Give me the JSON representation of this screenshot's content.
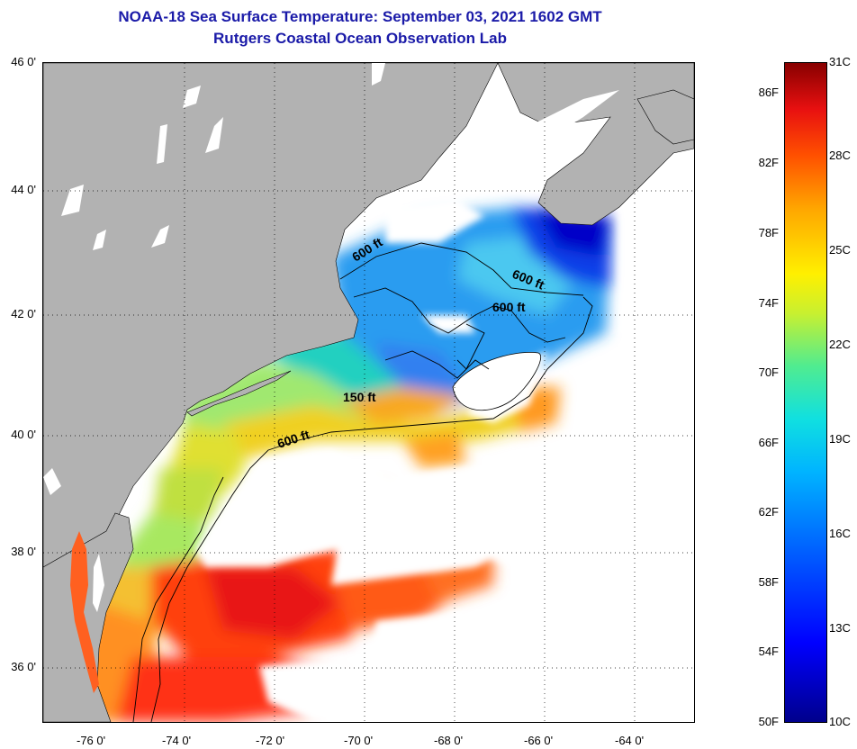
{
  "title_line1": "NOAA-18 Sea Surface Temperature:  September 03, 2021 1602 GMT",
  "title_line2": "Rutgers Coastal Ocean Observation Lab",
  "lat_labels": [
    "46 0'",
    "44 0'",
    "42 0'",
    "40 0'",
    "38 0'",
    "36 0'"
  ],
  "lon_labels": [
    "-76 0'",
    "-74 0'",
    "-72 0'",
    "-70 0'",
    "-68 0'",
    "-66 0'",
    "-64 0'"
  ],
  "isobaths": [
    "600 ft",
    "600 ft",
    "600 ft",
    "150 ft",
    "600 ft"
  ],
  "colorbar": {
    "fahrenheit": [
      "86F",
      "82F",
      "78F",
      "74F",
      "70F",
      "66F",
      "62F",
      "58F",
      "54F",
      "50F"
    ],
    "celsius": [
      "31C",
      "28C",
      "25C",
      "22C",
      "19C",
      "16C",
      "13C",
      "10C"
    ]
  },
  "colors": {
    "title": "#1a1aa8",
    "land": "#b2b2b2",
    "cloud_mask": "#ffffff",
    "cold": "#0000ff",
    "warm": "#ff2000"
  }
}
